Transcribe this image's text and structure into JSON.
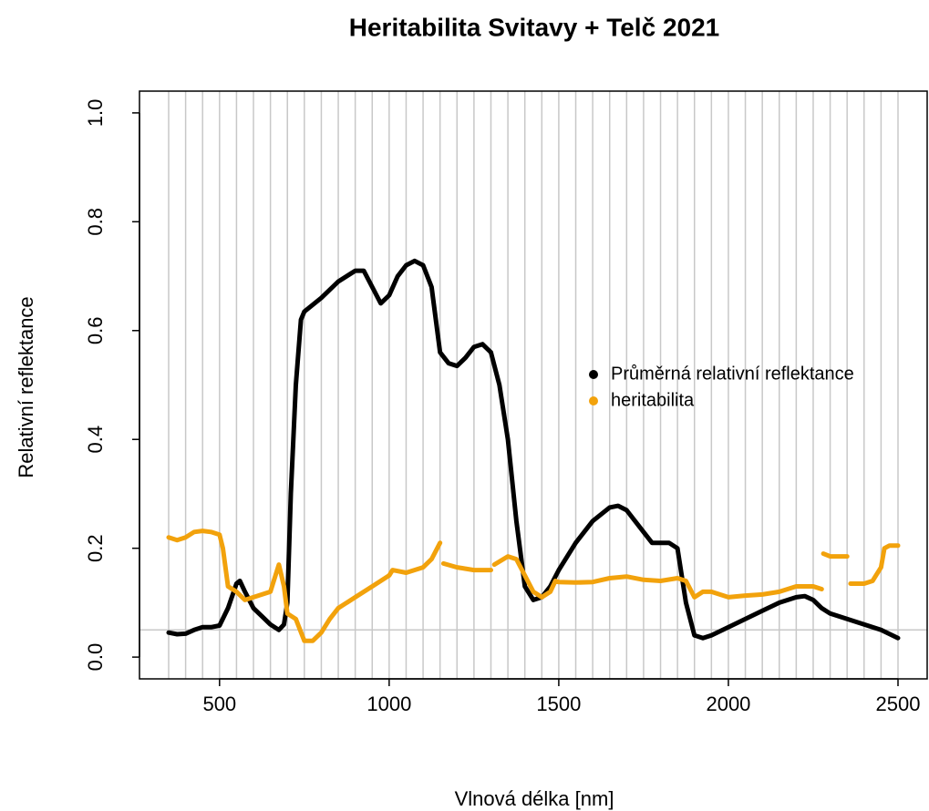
{
  "chart_data": {
    "type": "scatter",
    "title": "Heritabilita Svitavy + Telč 2021",
    "x_label": "Vlnová délka [nm]",
    "y_label": "Relativní reflektance",
    "xlim": [
      264,
      2586
    ],
    "ylim": [
      -0.04,
      1.04
    ],
    "xticks": [
      500,
      1000,
      1500,
      2000,
      2500
    ],
    "yticks": [
      {
        "value": 0,
        "label": "0.0"
      },
      0.2,
      0.4,
      0.6,
      0.8,
      {
        "value": 1,
        "label": "1.0"
      }
    ],
    "vlines": [
      350,
      400,
      450,
      500,
      550,
      600,
      650,
      700,
      750,
      800,
      850,
      900,
      950,
      1000,
      1050,
      1100,
      1150,
      1200,
      1250,
      1300,
      1350,
      1400,
      1450,
      1500,
      1550,
      1600,
      1650,
      1700,
      1750,
      1800,
      1850,
      1900,
      1950,
      2000,
      2050,
      2100,
      2150,
      2200,
      2250,
      2300,
      2350,
      2400,
      2450,
      2500
    ],
    "hline": 0.05,
    "legend": "right",
    "series": [
      {
        "name": "Průměrná relativní reflektance",
        "color": "#000000",
        "x": [
          350,
          375,
          400,
          425,
          450,
          475,
          500,
          525,
          550,
          560,
          575,
          600,
          625,
          650,
          675,
          690,
          700,
          710,
          725,
          740,
          750,
          800,
          850,
          900,
          925,
          950,
          975,
          1000,
          1025,
          1050,
          1075,
          1100,
          1125,
          1150,
          1175,
          1200,
          1225,
          1250,
          1275,
          1300,
          1325,
          1350,
          1375,
          1400,
          1425,
          1450,
          1475,
          1500,
          1550,
          1600,
          1650,
          1675,
          1700,
          1750,
          1775,
          1825,
          1850,
          1875,
          1900,
          1925,
          1950,
          2000,
          2050,
          2100,
          2150,
          2200,
          2225,
          2250,
          2275,
          2300,
          2350,
          2400,
          2450,
          2500
        ],
        "values": [
          0.045,
          0.042,
          0.043,
          0.05,
          0.055,
          0.055,
          0.058,
          0.09,
          0.135,
          0.14,
          0.12,
          0.09,
          0.075,
          0.06,
          0.05,
          0.06,
          0.1,
          0.3,
          0.5,
          0.62,
          0.635,
          0.66,
          0.69,
          0.71,
          0.71,
          0.68,
          0.65,
          0.665,
          0.7,
          0.72,
          0.728,
          0.72,
          0.68,
          0.56,
          0.54,
          0.535,
          0.55,
          0.57,
          0.575,
          0.56,
          0.5,
          0.4,
          0.25,
          0.13,
          0.105,
          0.11,
          0.13,
          0.16,
          0.21,
          0.25,
          0.275,
          0.278,
          0.27,
          0.23,
          0.21,
          0.21,
          0.2,
          0.1,
          0.04,
          0.035,
          0.04,
          0.055,
          0.07,
          0.085,
          0.1,
          0.11,
          0.112,
          0.105,
          0.09,
          0.08,
          0.07,
          0.06,
          0.05,
          0.035
        ]
      },
      {
        "name": "heritabilita",
        "color": "#f2a20c",
        "x": [
          350,
          375,
          400,
          425,
          450,
          475,
          500,
          510,
          525,
          550,
          575,
          600,
          625,
          650,
          660,
          675,
          690,
          700,
          725,
          750,
          775,
          800,
          825,
          850,
          900,
          950,
          1000,
          1010,
          1050,
          1100,
          1125,
          1150,
          1155,
          1160,
          1200,
          1250,
          1300,
          1305,
          1310,
          1350,
          1375,
          1400,
          1425,
          1450,
          1475,
          1490,
          1500,
          1550,
          1600,
          1650,
          1700,
          1750,
          1800,
          1850,
          1875,
          1900,
          1925,
          1950,
          2000,
          2050,
          2100,
          2150,
          2200,
          2250,
          2275,
          2278,
          2280,
          2300,
          2350,
          2355,
          2360,
          2400,
          2425,
          2450,
          2460,
          2475,
          2500
        ],
        "values": [
          0.22,
          0.215,
          0.22,
          0.23,
          0.232,
          0.23,
          0.225,
          0.2,
          0.13,
          0.12,
          0.105,
          0.11,
          0.115,
          0.12,
          0.14,
          0.17,
          0.13,
          0.08,
          0.07,
          0.03,
          0.03,
          0.045,
          0.07,
          0.09,
          0.11,
          0.13,
          0.15,
          0.16,
          0.155,
          0.165,
          0.18,
          0.21,
          null,
          0.172,
          0.165,
          0.16,
          0.16,
          null,
          0.17,
          0.185,
          0.18,
          0.15,
          0.12,
          0.11,
          0.12,
          0.14,
          0.138,
          0.137,
          0.138,
          0.145,
          0.148,
          0.142,
          0.14,
          0.145,
          0.14,
          0.11,
          0.12,
          0.12,
          0.11,
          0.113,
          0.115,
          0.12,
          0.13,
          0.13,
          0.125,
          null,
          0.19,
          0.185,
          0.185,
          null,
          0.135,
          0.135,
          0.14,
          0.165,
          0.2,
          0.205,
          0.205
        ]
      }
    ]
  }
}
